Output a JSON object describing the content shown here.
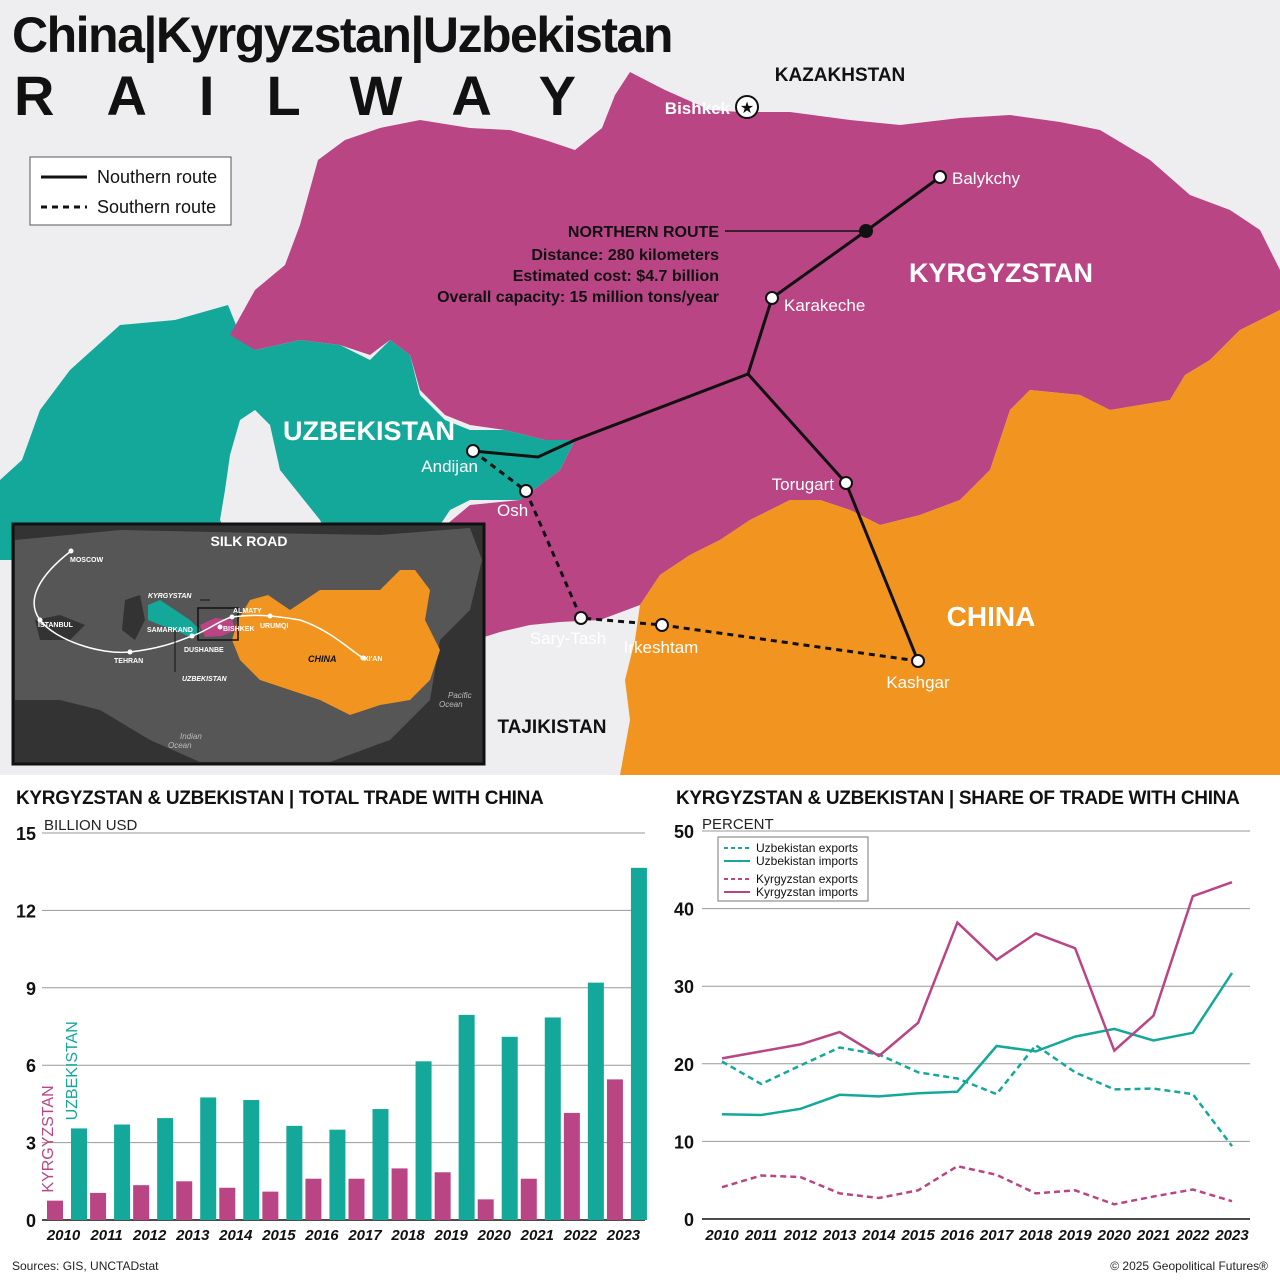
{
  "title": {
    "line1": "China|Kyrgyzstan|Uzbekistan",
    "line2": "RAILWAY"
  },
  "colors": {
    "kyrgyzstan": "#b94585",
    "uzbekistan": "#14a89a",
    "china": "#f29420",
    "background": "#eeeef0",
    "route": "#111111"
  },
  "map": {
    "countries": {
      "kazakhstan": "KAZAKHSTAN",
      "kyrgyzstan": "KYRGYZSTAN",
      "uzbekistan": "UZBEKISTAN",
      "china": "CHINA",
      "tajikistan": "TAJIKISTAN"
    },
    "capital": "Bishkek",
    "legend": {
      "northern": "Nouthern route",
      "southern": "Southern route"
    },
    "cities": [
      "Balykchy",
      "Karakeche",
      "Andijan",
      "Osh",
      "Torugart",
      "Sary-Tash",
      "Irkeshtam",
      "Kashgar"
    ],
    "northern_route_info": {
      "heading": "NORTHERN ROUTE",
      "distance": "Distance: 280 kilometers",
      "cost": "Estimated cost: $4.7 billion",
      "capacity": "Overall capacity: 15 million tons/year"
    },
    "inset": {
      "title": "SILK ROAD",
      "labels": {
        "moscow": "MOSCOW",
        "istanbul": "ISTANBUL",
        "tehran": "TEHRAN",
        "kyrgyzstan": "KYRGYSTAN",
        "samarkand": "SAMARKAND",
        "almaty": "ALMATY",
        "bishkek": "BISHKEK",
        "dushanbe": "DUSHANBE",
        "urumqi": "URUMQI",
        "uzbekistan": "UZBEKISTAN",
        "china": "CHINA",
        "xian": "XI'AN",
        "pacific": "Pacific",
        "ocean": "Ocean",
        "indian": "Indian",
        "ocean2": "Ocean"
      }
    }
  },
  "chart_data": [
    {
      "type": "bar",
      "title": "KYRGYZSTAN & UZBEKISTAN | TOTAL TRADE WITH CHINA",
      "ylabel": "BILLION USD",
      "ylim": [
        0,
        15
      ],
      "yticks": [
        0,
        3,
        6,
        9,
        12,
        15
      ],
      "categories": [
        "2010",
        "2011",
        "2012",
        "2013",
        "2014",
        "2015",
        "2016",
        "2017",
        "2018",
        "2019",
        "2020",
        "2021",
        "2022",
        "2023"
      ],
      "series": [
        {
          "name": "KYRGYZSTAN",
          "color": "#b94585",
          "values": [
            0.75,
            1.05,
            1.35,
            1.5,
            1.25,
            1.1,
            1.6,
            1.6,
            2.0,
            1.85,
            0.8,
            1.6,
            4.15,
            5.45
          ]
        },
        {
          "name": "UZBEKISTAN",
          "color": "#14a89a",
          "values": [
            3.55,
            3.7,
            3.95,
            4.75,
            4.65,
            3.65,
            3.5,
            4.3,
            6.15,
            7.95,
            7.1,
            7.85,
            9.2,
            13.65
          ]
        }
      ]
    },
    {
      "type": "line",
      "title": "KYRGYZSTAN & UZBEKISTAN | SHARE OF TRADE WITH CHINA",
      "ylabel": "PERCENT",
      "ylim": [
        0,
        50
      ],
      "yticks": [
        0,
        10,
        20,
        30,
        40,
        50
      ],
      "x": [
        "2010",
        "2011",
        "2012",
        "2013",
        "2014",
        "2015",
        "2016",
        "2017",
        "2018",
        "2019",
        "2020",
        "2021",
        "2022",
        "2023"
      ],
      "legend_position": "top-left",
      "series": [
        {
          "name": "Uzbekistan exports",
          "color": "#14a89a",
          "dashed": true,
          "values": [
            20.3,
            17.4,
            19.8,
            22.1,
            21.2,
            18.9,
            18.1,
            16.1,
            22.4,
            18.9,
            16.7,
            16.8,
            16.1,
            9.4
          ]
        },
        {
          "name": "Uzbekistan imports",
          "color": "#14a89a",
          "dashed": false,
          "values": [
            13.5,
            13.4,
            14.2,
            16.0,
            15.8,
            16.2,
            16.4,
            22.3,
            21.6,
            23.5,
            24.5,
            23.0,
            24.0,
            31.7
          ]
        },
        {
          "name": "Kyrgyzstan exports",
          "color": "#b94585",
          "dashed": true,
          "values": [
            4.1,
            5.6,
            5.4,
            3.3,
            2.7,
            3.7,
            6.8,
            5.7,
            3.3,
            3.7,
            1.9,
            2.9,
            3.8,
            2.3
          ]
        },
        {
          "name": "Kyrgyzstan imports",
          "color": "#b94585",
          "dashed": false,
          "values": [
            20.7,
            21.6,
            22.5,
            24.1,
            21.0,
            25.3,
            38.2,
            33.4,
            36.8,
            34.9,
            21.7,
            26.2,
            41.6,
            43.4
          ]
        }
      ]
    }
  ],
  "footer": {
    "sources": "Sources: GIS, UNCTADstat",
    "copyright": "© 2025 Geopolitical Futures®"
  }
}
